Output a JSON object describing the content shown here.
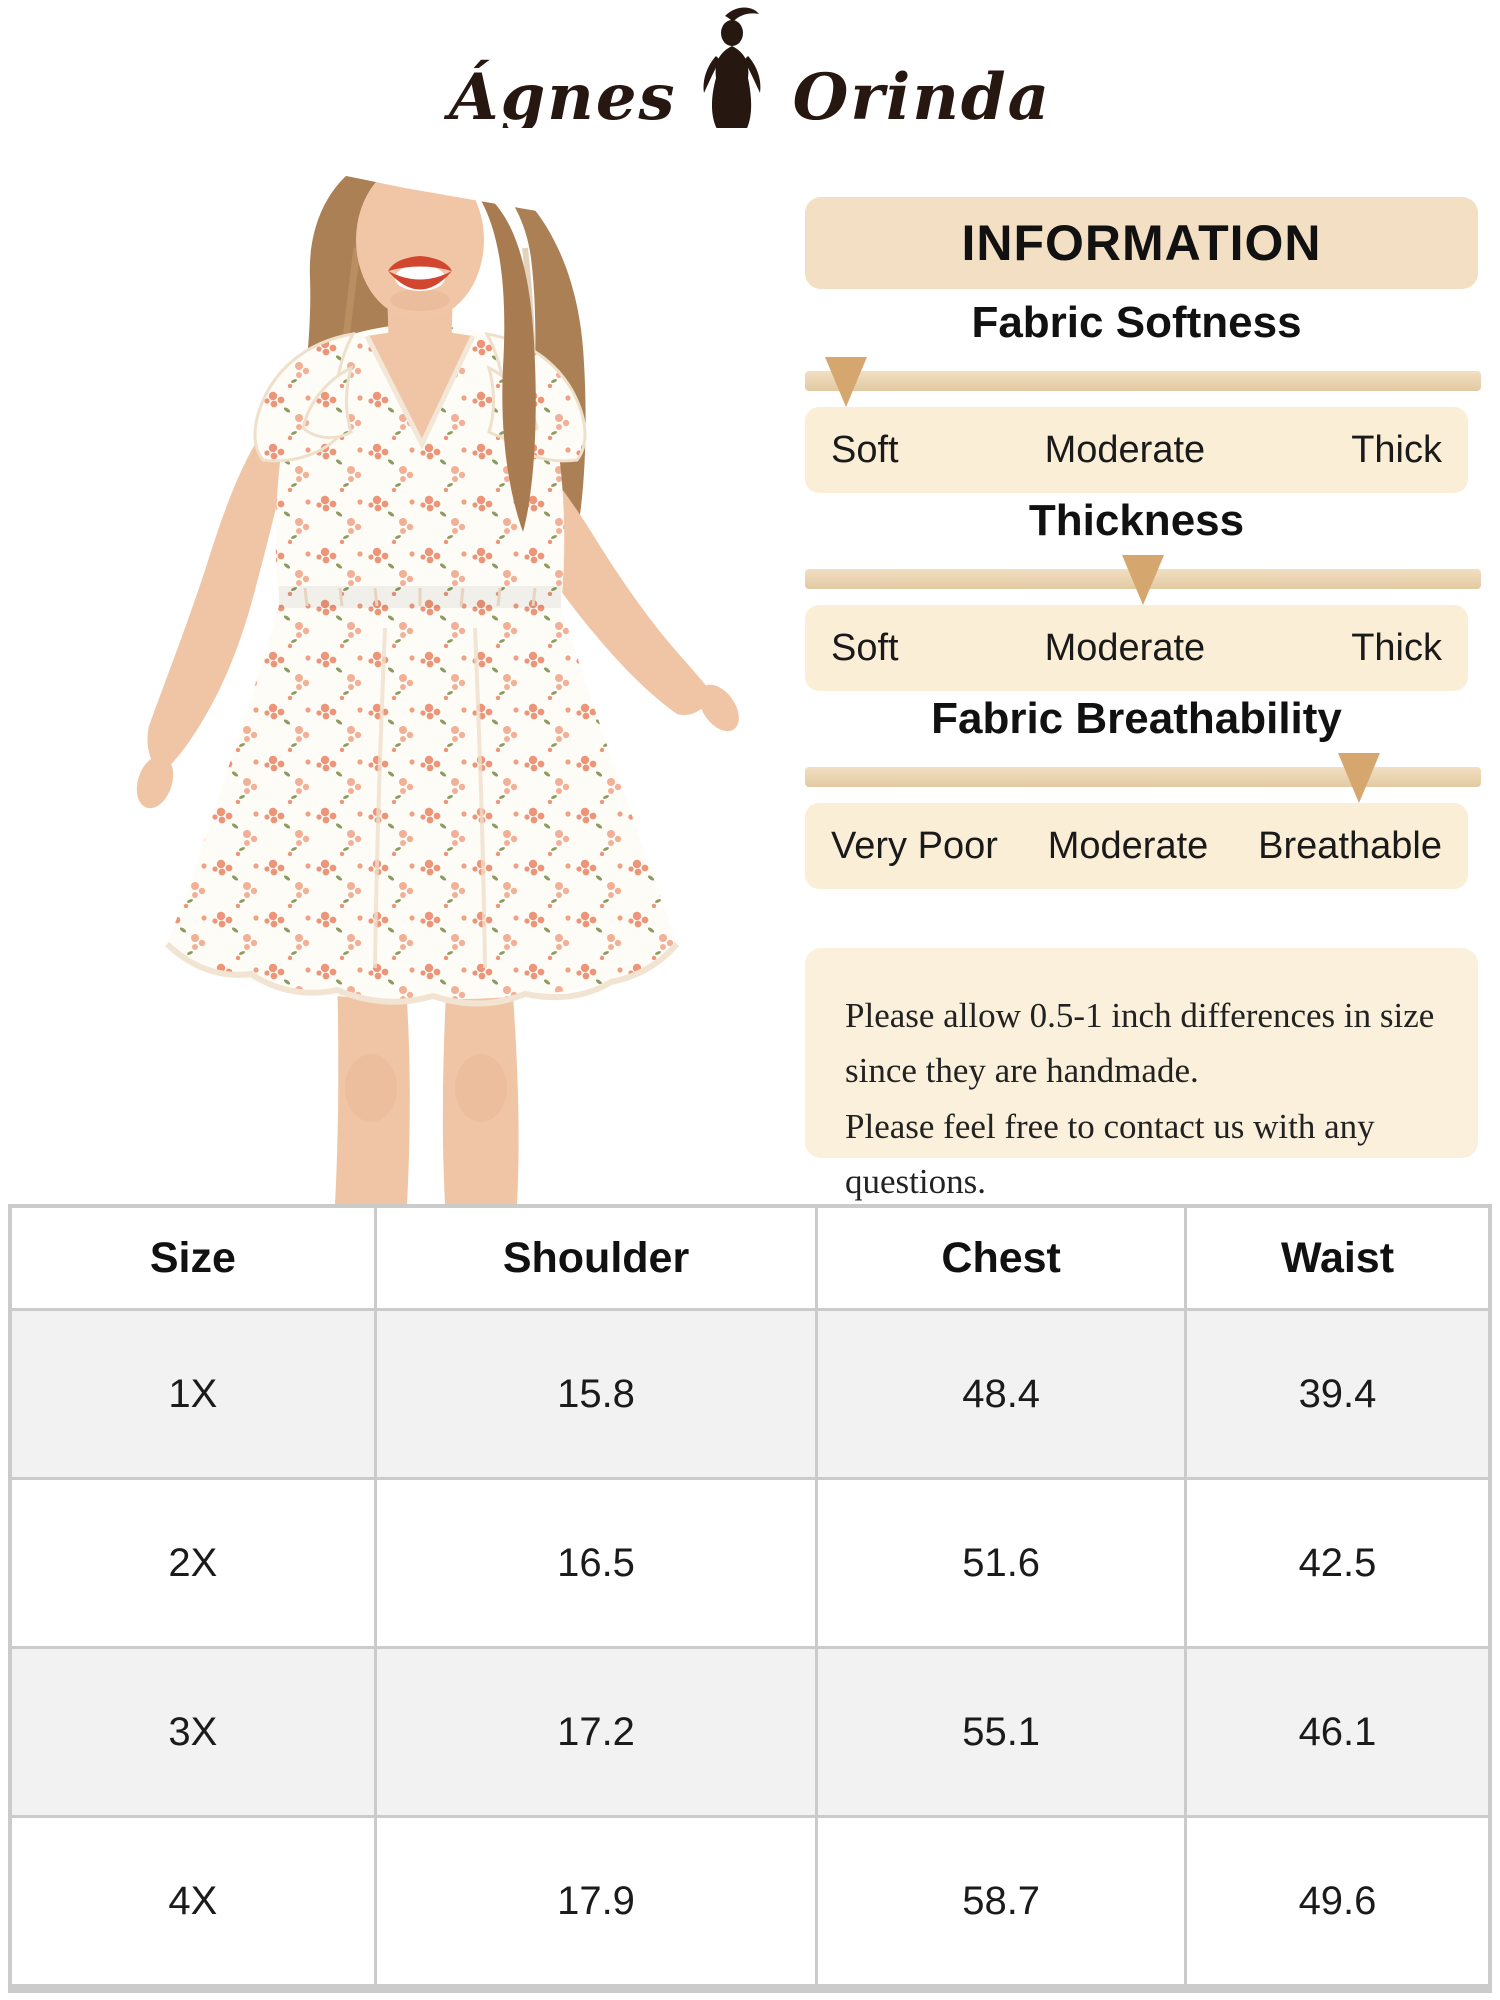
{
  "brand": {
    "name_left": "Ágnes",
    "name_right": "Orinda",
    "logo_icon": "woman-silhouette"
  },
  "info_panel": {
    "title": "INFORMATION",
    "scales": [
      {
        "heading": "Fabric Softness",
        "labels": [
          "Soft",
          "Moderate",
          "Thick"
        ],
        "arrow_pct": 6
      },
      {
        "heading": "Thickness",
        "labels": [
          "Soft",
          "Moderate",
          "Thick"
        ],
        "arrow_pct": 50
      },
      {
        "heading": "Fabric Breathability",
        "labels": [
          "Very Poor",
          "Moderate",
          "Breathable"
        ],
        "arrow_pct": 82
      }
    ],
    "note_lines": [
      "Please allow 0.5-1 inch differences in size",
      "since they are handmade.",
      "Please feel free to contact us with any questions."
    ]
  },
  "size_table": {
    "headers": [
      "Size",
      "Shoulder",
      "Chest",
      "Waist"
    ],
    "rows": [
      [
        "1X",
        "15.8",
        "48.4",
        "39.4"
      ],
      [
        "2X",
        "16.5",
        "51.6",
        "42.5"
      ],
      [
        "3X",
        "17.2",
        "55.1",
        "46.1"
      ],
      [
        "4X",
        "17.9",
        "58.7",
        "49.6"
      ]
    ]
  },
  "colors": {
    "panel_box": "#F3DFC3",
    "label_box": "#FBEED6",
    "note_box": "#FAF0DC",
    "arrow": "#D5A76F",
    "bar_top": "#F2DFC2",
    "bar_bottom": "#E2C9A2",
    "table_border": "#CBCBCB",
    "table_alt_row": "#F2F2F2",
    "logo_ink": "#261710"
  }
}
